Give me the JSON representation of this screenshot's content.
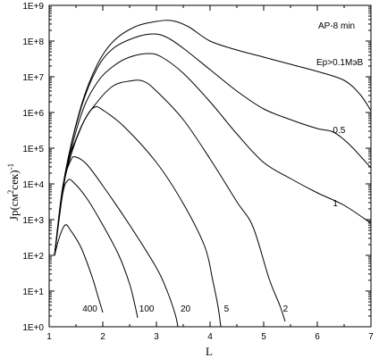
{
  "chart_data": {
    "type": "line",
    "title": "",
    "xlabel": "L",
    "ylabel": "Jp(см^2сек)^-1",
    "ylabel_parts": {
      "main": "Jp(см",
      "sup1": "2",
      "mid": "сек)",
      "sup2": "-1"
    },
    "x_scale": "linear",
    "y_scale": "log",
    "xlim": [
      1,
      7
    ],
    "ylim_log10": [
      0,
      9
    ],
    "x_ticks": [
      "1",
      "2",
      "3",
      "4",
      "5",
      "6",
      "7"
    ],
    "y_ticks": [
      {
        "base": "1E+0",
        "sup": ""
      },
      {
        "base": "1E+1",
        "sup": ""
      },
      {
        "base": "1E+",
        "sup": "2"
      },
      {
        "base": "1E+",
        "sup": "3"
      },
      {
        "base": "1E+",
        "sup": "4"
      },
      {
        "base": "1E+",
        "sup": "5"
      },
      {
        "base": "1E+",
        "sup": "6"
      },
      {
        "base": "1E+",
        "sup": "7"
      },
      {
        "base": "1E+",
        "sup": "8"
      },
      {
        "base": "1E+9",
        "sup": ""
      }
    ],
    "grid": false,
    "annotations": {
      "model": "AP-8 min",
      "energy_label": "Ep>0.1МэВ"
    },
    "series": [
      {
        "name": "0.1",
        "curve_label": "",
        "points": [
          [
            1.1,
            2.0
          ],
          [
            1.3,
            4.3
          ],
          [
            1.6,
            6.2
          ],
          [
            1.9,
            7.35
          ],
          [
            2.2,
            8.0
          ],
          [
            2.6,
            8.4
          ],
          [
            3.0,
            8.55
          ],
          [
            3.3,
            8.57
          ],
          [
            3.6,
            8.4
          ],
          [
            4.0,
            8.0
          ],
          [
            4.5,
            7.75
          ],
          [
            5.0,
            7.55
          ],
          [
            5.5,
            7.35
          ],
          [
            6.0,
            7.15
          ],
          [
            6.5,
            6.9
          ],
          [
            6.8,
            6.5
          ],
          [
            7.0,
            6.05
          ]
        ]
      },
      {
        "name": "0.5",
        "curve_label": "0.5",
        "points": [
          [
            1.1,
            2.0
          ],
          [
            1.3,
            4.3
          ],
          [
            1.6,
            6.15
          ],
          [
            1.9,
            7.25
          ],
          [
            2.2,
            7.8
          ],
          [
            2.6,
            8.1
          ],
          [
            2.95,
            8.2
          ],
          [
            3.2,
            8.1
          ],
          [
            3.5,
            7.8
          ],
          [
            4.0,
            7.2
          ],
          [
            4.5,
            6.6
          ],
          [
            5.0,
            6.1
          ],
          [
            5.5,
            5.8
          ],
          [
            6.0,
            5.55
          ],
          [
            6.3,
            5.45
          ],
          [
            6.6,
            5.1
          ],
          [
            7.0,
            4.45
          ]
        ]
      },
      {
        "name": "1",
        "curve_label": "1",
        "points": [
          [
            1.1,
            2.0
          ],
          [
            1.3,
            4.2
          ],
          [
            1.6,
            5.95
          ],
          [
            1.9,
            6.85
          ],
          [
            2.2,
            7.3
          ],
          [
            2.5,
            7.55
          ],
          [
            2.85,
            7.65
          ],
          [
            3.1,
            7.55
          ],
          [
            3.5,
            7.1
          ],
          [
            4.0,
            6.3
          ],
          [
            4.5,
            5.4
          ],
          [
            5.0,
            4.6
          ],
          [
            5.5,
            4.15
          ],
          [
            6.0,
            3.75
          ],
          [
            6.5,
            3.4
          ],
          [
            7.0,
            2.9
          ]
        ]
      },
      {
        "name": "2",
        "curve_label": "2",
        "points": [
          [
            1.1,
            2.0
          ],
          [
            1.3,
            4.2
          ],
          [
            1.6,
            5.6
          ],
          [
            1.9,
            6.3
          ],
          [
            2.2,
            6.75
          ],
          [
            2.5,
            6.88
          ],
          [
            2.75,
            6.88
          ],
          [
            3.0,
            6.6
          ],
          [
            3.5,
            5.8
          ],
          [
            4.0,
            4.7
          ],
          [
            4.5,
            3.5
          ],
          [
            4.8,
            2.8
          ],
          [
            5.1,
            1.35
          ],
          [
            5.3,
            0.6
          ],
          [
            5.4,
            0.15
          ]
        ]
      },
      {
        "name": "5",
        "curve_label": "5",
        "points": [
          [
            1.1,
            2.0
          ],
          [
            1.3,
            4.3
          ],
          [
            1.5,
            5.25
          ],
          [
            1.7,
            5.9
          ],
          [
            1.85,
            6.15
          ],
          [
            2.0,
            6.07
          ],
          [
            2.4,
            5.6
          ],
          [
            3.0,
            4.6
          ],
          [
            3.5,
            3.45
          ],
          [
            3.9,
            2.25
          ],
          [
            4.05,
            1.3
          ],
          [
            4.15,
            0.55
          ],
          [
            4.2,
            0.0
          ]
        ]
      },
      {
        "name": "20",
        "curve_label": "20",
        "points": [
          [
            1.1,
            2.0
          ],
          [
            1.25,
            3.9
          ],
          [
            1.4,
            4.65
          ],
          [
            1.5,
            4.75
          ],
          [
            1.7,
            4.55
          ],
          [
            2.0,
            3.95
          ],
          [
            2.5,
            2.85
          ],
          [
            3.0,
            1.65
          ],
          [
            3.2,
            1.0
          ],
          [
            3.35,
            0.35
          ],
          [
            3.4,
            0.0
          ]
        ]
      },
      {
        "name": "100",
        "curve_label": "100",
        "points": [
          [
            1.1,
            2.0
          ],
          [
            1.25,
            3.7
          ],
          [
            1.35,
            4.1
          ],
          [
            1.45,
            4.05
          ],
          [
            1.7,
            3.6
          ],
          [
            2.0,
            2.85
          ],
          [
            2.3,
            2.0
          ],
          [
            2.5,
            1.2
          ],
          [
            2.6,
            0.6
          ],
          [
            2.65,
            0.25
          ]
        ]
      },
      {
        "name": "400",
        "curve_label": "400",
        "points": [
          [
            1.1,
            2.0
          ],
          [
            1.2,
            2.55
          ],
          [
            1.3,
            2.85
          ],
          [
            1.4,
            2.7
          ],
          [
            1.6,
            2.2
          ],
          [
            1.8,
            1.4
          ],
          [
            1.9,
            0.9
          ],
          [
            2.0,
            0.4
          ]
        ]
      }
    ],
    "curve_labels_at": [
      {
        "text": "400",
        "x": 1.62,
        "y": 0.42
      },
      {
        "text": "100",
        "x": 2.68,
        "y": 0.42
      },
      {
        "text": "20",
        "x": 3.45,
        "y": 0.42
      },
      {
        "text": "5",
        "x": 4.26,
        "y": 0.42
      },
      {
        "text": "2",
        "x": 5.36,
        "y": 0.42
      },
      {
        "text": "1",
        "x": 6.29,
        "y": 3.38
      },
      {
        "text": "0.5",
        "x": 6.29,
        "y": 5.42
      }
    ]
  }
}
